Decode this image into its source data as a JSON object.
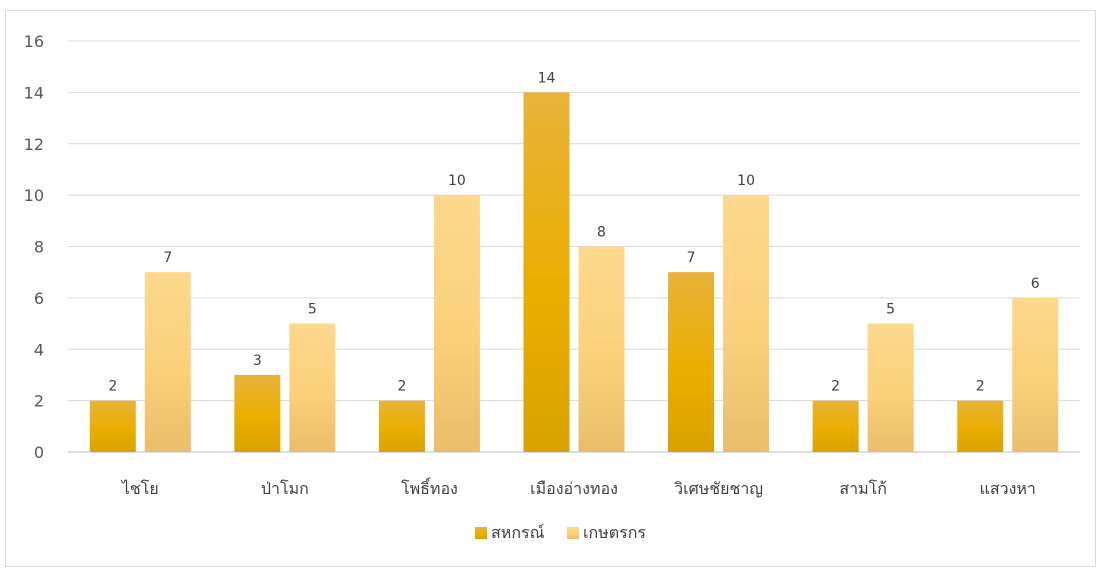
{
  "chart_data": {
    "type": "bar",
    "title": "",
    "xlabel": "",
    "ylabel": "",
    "ylim": [
      0,
      16
    ],
    "yticks": [
      0,
      2,
      4,
      6,
      8,
      10,
      12,
      14,
      16
    ],
    "grid": true,
    "legend_position": "bottom",
    "categories": [
      "ไชโย",
      "ป่าโมก",
      "โพธิ์ทอง",
      "เมืองอ่างทอง",
      "วิเศษชัยชาญ",
      "สามโก้",
      "แสวงหา"
    ],
    "series": [
      {
        "name": "สหกรณ์",
        "values": [
          2,
          3,
          2,
          14,
          7,
          2,
          2
        ],
        "color": "#E2A800"
      },
      {
        "name": "เกษตรกร",
        "values": [
          7,
          5,
          10,
          8,
          10,
          5,
          6
        ],
        "color": "#FAD27A"
      }
    ]
  }
}
